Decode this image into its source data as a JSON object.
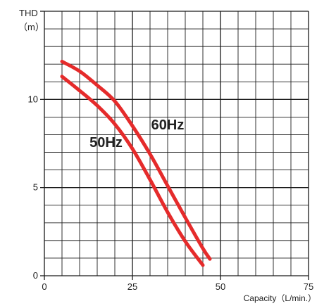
{
  "chart_data": {
    "type": "line",
    "ylabel_top": "THD",
    "ylabel_unit": "（m）",
    "xlabel": "Capacity（L/min.）",
    "xlim": [
      0,
      75
    ],
    "ylim": [
      0,
      15
    ],
    "xticks": [
      0,
      25,
      50,
      75
    ],
    "yticks": [
      0,
      5,
      10
    ],
    "x_grid_step": 5,
    "y_grid_step": 1,
    "grid": true,
    "series": [
      {
        "name": "60Hz",
        "color": "#e52b2b",
        "x": [
          5,
          10,
          15,
          20,
          25,
          30,
          35,
          40,
          45,
          47
        ],
        "y": [
          12.15,
          11.6,
          10.8,
          9.9,
          8.5,
          6.9,
          5.1,
          3.3,
          1.55,
          0.95
        ]
      },
      {
        "name": "50Hz",
        "color": "#e52b2b",
        "x": [
          5,
          10,
          15,
          20,
          25,
          30,
          35,
          40,
          45
        ],
        "y": [
          11.3,
          10.5,
          9.65,
          8.6,
          7.2,
          5.45,
          3.6,
          1.95,
          0.6
        ]
      }
    ],
    "annotations": [
      {
        "text": "60Hz",
        "x": 35,
        "y": 8.3
      },
      {
        "text": "50Hz",
        "x": 17.5,
        "y": 7.3
      }
    ]
  }
}
